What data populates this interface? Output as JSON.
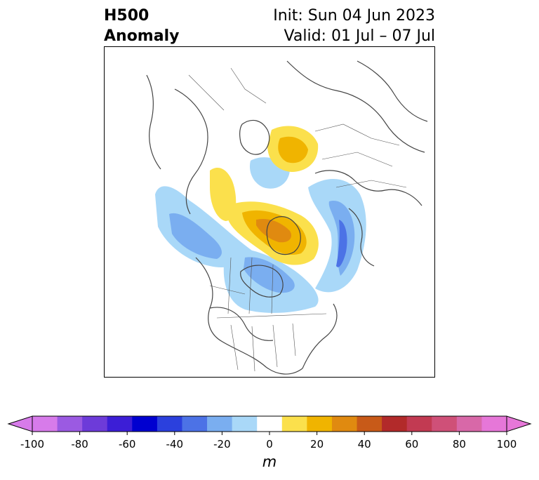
{
  "title": {
    "left_line1": "H500",
    "left_line2": "Anomaly",
    "right_line1": "Init: Sun 04 Jun 2023",
    "right_line2": "Valid: 01 Jul – 07 Jul"
  },
  "colorbar": {
    "unit": "m",
    "ticks": [
      "-100",
      "-80",
      "-60",
      "-40",
      "-20",
      "0",
      "20",
      "40",
      "60",
      "80",
      "100"
    ],
    "extend": "both",
    "colors": [
      "#d77bea",
      "#9b5ae2",
      "#6d3bd9",
      "#3c1ed6",
      "#0000d0",
      "#2b40dd",
      "#4c72e6",
      "#7aaef0",
      "#a9d8f8",
      "#ffffff",
      "#fbe04c",
      "#f0b400",
      "#e08a10",
      "#c85a18",
      "#b22a2a",
      "#c23a52",
      "#cf5078",
      "#d868a8",
      "#e677d8"
    ],
    "extend_low_color": "#d77bea",
    "extend_high_color": "#e677d8"
  },
  "map": {
    "projection": "polar-stereographic",
    "region": "northern-hemisphere-north-america",
    "border_color": "#444444"
  }
}
